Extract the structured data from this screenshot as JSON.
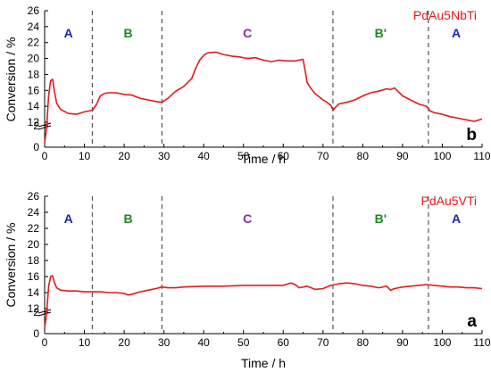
{
  "colors": {
    "curve": "#e31a1c",
    "region_A": "#1f1fbf",
    "region_B": "#1e8a1e",
    "region_C": "#8e2a9e",
    "axis": "#000000",
    "divider": "#555555"
  },
  "chart_data": [
    {
      "type": "line",
      "panel_letter": "b",
      "sample": "PdAu5NbTi",
      "xlabel": "Time / h",
      "ylabel": "Conversion / %",
      "xlim": [
        0,
        110
      ],
      "ylim": [
        0,
        26
      ],
      "x_ticks": [
        "0",
        "10",
        "20",
        "30",
        "40",
        "50",
        "60",
        "70",
        "80",
        "90",
        "100",
        "110"
      ],
      "y_ticks": [
        "0",
        "2",
        "12",
        "14",
        "16",
        "18",
        "20",
        "22",
        "24",
        "26"
      ],
      "axis_break": [
        2,
        12
      ],
      "dividers": [
        12,
        29.5,
        72.5,
        96.5
      ],
      "regions": [
        {
          "label": "A",
          "x": 6,
          "color_key": "region_A"
        },
        {
          "label": "B",
          "x": 21,
          "color_key": "region_B"
        },
        {
          "label": "C",
          "x": 51,
          "color_key": "region_C"
        },
        {
          "label": "B'",
          "x": 84.5,
          "color_key": "region_B"
        },
        {
          "label": "A",
          "x": 103.5,
          "color_key": "region_A"
        }
      ],
      "x": [
        0,
        0.5,
        1,
        1.5,
        2,
        2.5,
        3,
        4,
        6,
        8,
        10,
        12,
        13,
        14,
        15,
        16,
        18,
        20,
        22,
        24,
        26,
        28,
        29.5,
        31,
        33,
        35,
        37,
        38,
        39,
        40,
        41,
        43,
        45,
        47,
        49,
        51,
        53,
        55,
        57,
        59,
        61,
        63,
        65,
        65.5,
        66,
        67,
        68,
        70,
        71,
        72,
        72.5,
        73,
        74,
        76,
        78,
        80,
        82,
        84,
        86,
        87,
        88,
        89,
        90,
        92,
        94,
        96,
        97,
        98,
        100,
        102,
        104,
        106,
        108,
        110
      ],
      "y": [
        0.4,
        1.8,
        15.4,
        17.2,
        17.4,
        15.8,
        14.4,
        13.6,
        13.1,
        13.0,
        13.3,
        13.5,
        14.2,
        15.3,
        15.6,
        15.7,
        15.7,
        15.5,
        15.4,
        15.0,
        14.8,
        14.6,
        14.5,
        15.0,
        15.9,
        16.5,
        17.5,
        18.8,
        19.8,
        20.4,
        20.7,
        20.8,
        20.5,
        20.3,
        20.2,
        20.0,
        20.1,
        19.8,
        19.6,
        19.8,
        19.7,
        19.7,
        19.9,
        18.5,
        17.0,
        16.2,
        15.6,
        14.8,
        14.5,
        14.1,
        13.5,
        13.8,
        14.3,
        14.5,
        14.8,
        15.3,
        15.7,
        15.9,
        16.2,
        16.1,
        16.3,
        15.8,
        15.3,
        14.8,
        14.3,
        14.0,
        13.4,
        13.2,
        13.0,
        12.7,
        12.5,
        12.3,
        12.1,
        12.4
      ]
    },
    {
      "type": "line",
      "panel_letter": "a",
      "sample": "PdAu5VTi",
      "xlabel": "Time / h",
      "ylabel": "Conversion / %",
      "xlim": [
        0,
        110
      ],
      "ylim": [
        0,
        26
      ],
      "x_ticks": [
        "0",
        "10",
        "20",
        "30",
        "40",
        "50",
        "60",
        "70",
        "80",
        "90",
        "100",
        "110"
      ],
      "y_ticks": [
        "0",
        "2",
        "12",
        "14",
        "16",
        "18",
        "20",
        "22",
        "24",
        "26"
      ],
      "axis_break": [
        2,
        12
      ],
      "dividers": [
        12,
        29.5,
        72.5,
        96.5
      ],
      "regions": [
        {
          "label": "A",
          "x": 6,
          "color_key": "region_A"
        },
        {
          "label": "B",
          "x": 21,
          "color_key": "region_B"
        },
        {
          "label": "C",
          "x": 51,
          "color_key": "region_C"
        },
        {
          "label": "B'",
          "x": 84.5,
          "color_key": "region_B"
        },
        {
          "label": "A",
          "x": 103.5,
          "color_key": "region_A"
        }
      ],
      "x": [
        0,
        0.5,
        1,
        1.5,
        2,
        2.5,
        3,
        4,
        6,
        8,
        10,
        12,
        14,
        16,
        18,
        20,
        21,
        22,
        24,
        26,
        28,
        29.5,
        31,
        33,
        35,
        40,
        45,
        50,
        55,
        60,
        62,
        63,
        64,
        66,
        68,
        70,
        72,
        74,
        76,
        78,
        80,
        82,
        84,
        86,
        87,
        88,
        90,
        92,
        94,
        96,
        98,
        100,
        102,
        104,
        106,
        108,
        110
      ],
      "y": [
        0.5,
        1.9,
        14.8,
        16.0,
        16.1,
        15.2,
        14.6,
        14.3,
        14.2,
        14.2,
        14.1,
        14.1,
        14.1,
        14.0,
        14.0,
        13.9,
        13.7,
        13.8,
        14.1,
        14.3,
        14.5,
        14.7,
        14.6,
        14.6,
        14.7,
        14.8,
        14.8,
        14.9,
        14.9,
        14.9,
        15.2,
        15.0,
        14.6,
        14.8,
        14.4,
        14.5,
        14.9,
        15.1,
        15.2,
        15.1,
        14.9,
        14.8,
        14.6,
        14.8,
        14.3,
        14.5,
        14.7,
        14.8,
        14.9,
        15.0,
        14.9,
        14.8,
        14.7,
        14.7,
        14.6,
        14.6,
        14.5
      ]
    }
  ]
}
